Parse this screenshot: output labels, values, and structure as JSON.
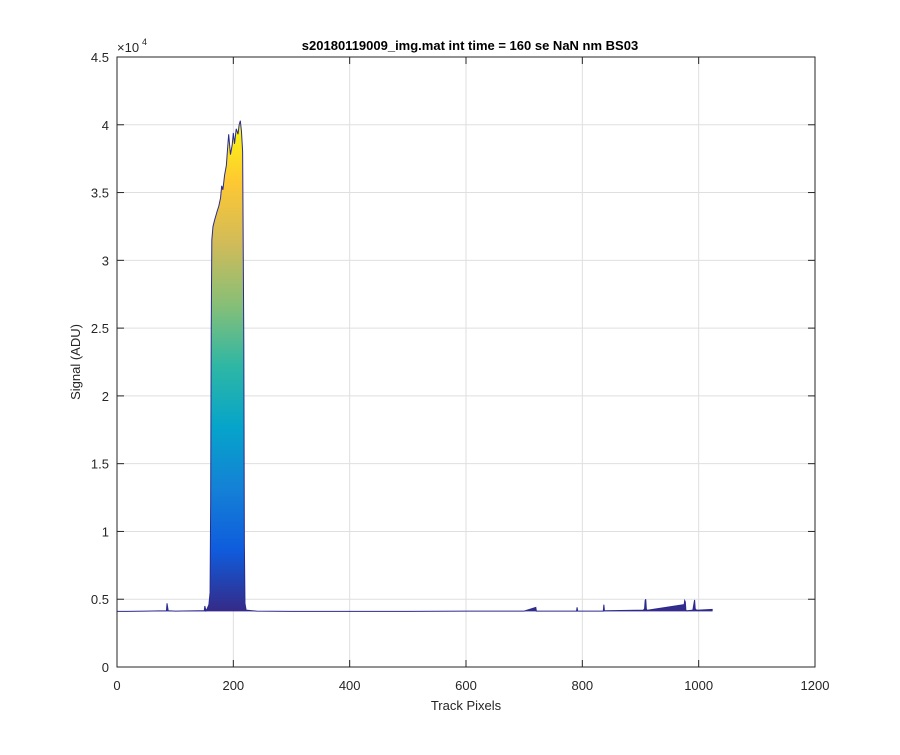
{
  "chart_data": {
    "type": "area",
    "title": "s20180119009_img.mat int time = 160 se  NaN nm BS03",
    "xlabel": "Track Pixels",
    "ylabel": "Signal (ADU)",
    "xlim": [
      0,
      1200
    ],
    "ylim": [
      0,
      45000
    ],
    "x_ticks": [
      0,
      200,
      400,
      600,
      800,
      1000,
      1200
    ],
    "y_ticks": [
      0,
      5000,
      10000,
      15000,
      20000,
      25000,
      30000,
      35000,
      40000,
      45000
    ],
    "x_tick_labels": [
      "0",
      "200",
      "400",
      "600",
      "800",
      "1000",
      "1200"
    ],
    "y_tick_labels": [
      "0",
      "0.5",
      "1",
      "1.5",
      "2",
      "2.5",
      "3",
      "3.5",
      "4",
      "4.5"
    ],
    "y_exponent_label": "×10",
    "y_exponent": "4",
    "grid": true,
    "colormap": "parula",
    "colormap_stops": [
      "#352a87",
      "#0f5cdd",
      "#1481d6",
      "#06a4ca",
      "#2eb7a4",
      "#87bf77",
      "#d1bb59",
      "#fec832",
      "#f9fb0e"
    ],
    "line_color": "#2b2b8f",
    "series": [
      {
        "x": [
          0,
          50,
          85,
          86,
          88,
          100,
          140,
          150,
          151,
          153,
          155,
          158,
          160,
          161,
          162,
          163,
          165,
          168,
          170,
          172,
          175,
          178,
          180,
          182,
          185,
          188,
          190,
          192,
          195,
          198,
          200,
          202,
          205,
          208,
          210,
          212,
          214,
          216,
          218,
          219,
          220,
          222,
          240,
          300,
          400,
          500,
          600,
          700,
          720,
          721,
          722,
          790,
          791,
          792,
          836,
          837,
          838,
          905,
          907,
          908,
          909,
          910,
          911,
          913,
          975,
          976,
          977,
          978,
          979,
          980,
          990,
          992,
          993,
          994,
          996,
          1000,
          1024
        ],
        "y": [
          4100,
          4120,
          4150,
          4700,
          4150,
          4120,
          4150,
          4150,
          4500,
          4150,
          4300,
          4600,
          5500,
          12000,
          25000,
          31500,
          32500,
          33000,
          33300,
          33600,
          34000,
          34600,
          35500,
          35200,
          36300,
          37000,
          38200,
          39300,
          37800,
          38500,
          39400,
          38600,
          39700,
          39300,
          40000,
          40300,
          39500,
          38000,
          24000,
          9000,
          4700,
          4200,
          4120,
          4100,
          4100,
          4100,
          4120,
          4120,
          4400,
          4120,
          4120,
          4120,
          4400,
          4120,
          4120,
          4600,
          4150,
          4200,
          4300,
          4900,
          5000,
          4300,
          4200,
          4200,
          4600,
          4900,
          4800,
          4200,
          4150,
          4150,
          4200,
          4700,
          4950,
          4300,
          4200,
          4200,
          4250
        ]
      }
    ]
  }
}
